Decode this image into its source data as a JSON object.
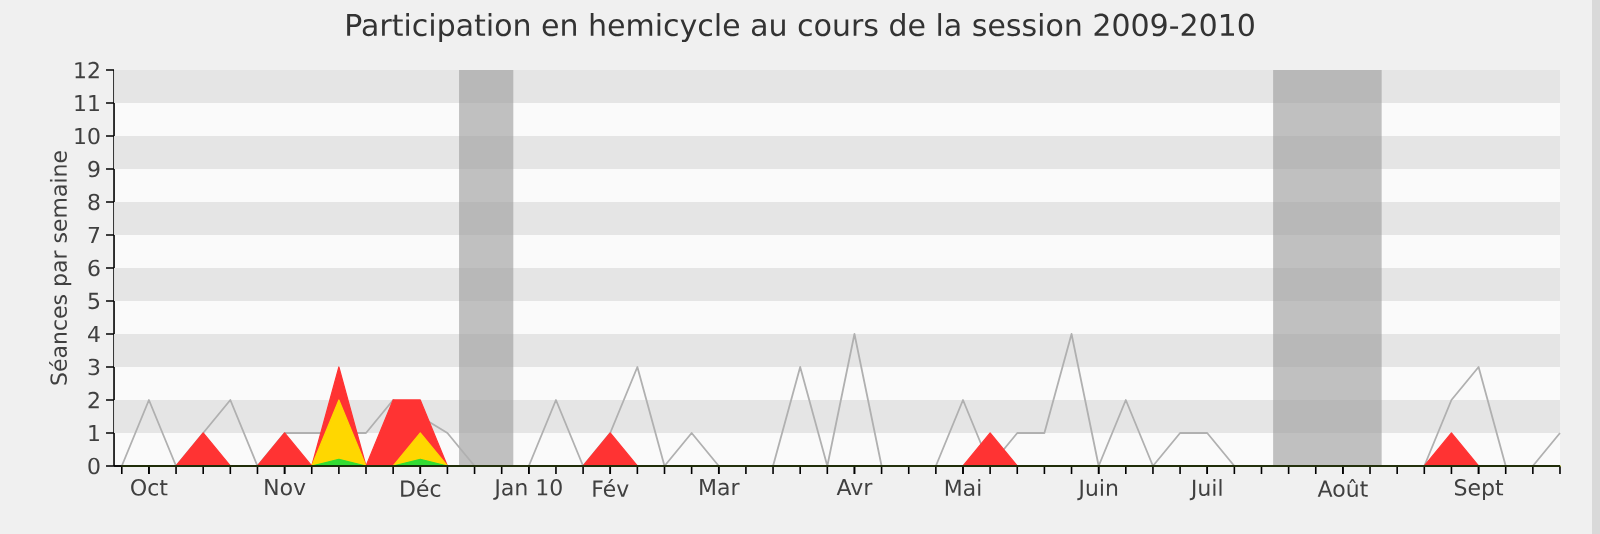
{
  "chart_data": {
    "type": "area",
    "title": "Participation en hemicycle au cours de la session 2009-2010",
    "ylabel": "Séances par semaine",
    "x": [
      "2009-09-28",
      "2009-10-05",
      "2009-10-12",
      "2009-10-19",
      "2009-10-26",
      "2009-11-02",
      "2009-11-09",
      "2009-11-16",
      "2009-11-23",
      "2009-11-30",
      "2009-12-07",
      "2009-12-14",
      "2009-12-21",
      "2009-12-28",
      "2010-01-04",
      "2010-01-11",
      "2010-01-18",
      "2010-01-25",
      "2010-02-01",
      "2010-02-08",
      "2010-02-15",
      "2010-02-22",
      "2010-03-01",
      "2010-03-08",
      "2010-03-15",
      "2010-03-22",
      "2010-03-29",
      "2010-04-05",
      "2010-04-12",
      "2010-04-19",
      "2010-04-26",
      "2010-05-03",
      "2010-05-10",
      "2010-05-17",
      "2010-05-24",
      "2010-05-31",
      "2010-06-07",
      "2010-06-14",
      "2010-06-21",
      "2010-06-28",
      "2010-07-05",
      "2010-07-12",
      "2010-07-19",
      "2010-07-26",
      "2010-08-02",
      "2010-08-09",
      "2010-08-16",
      "2010-08-23",
      "2010-08-30",
      "2010-09-06",
      "2010-09-13",
      "2010-09-20",
      "2010-09-27",
      "2010-10-04"
    ],
    "series": [
      {
        "type": "line",
        "color": "#b0b0b0",
        "values": [
          0,
          2,
          0,
          1,
          2,
          0,
          1,
          1,
          null,
          1,
          2,
          null,
          1,
          0,
          0,
          0,
          2,
          0,
          1,
          3,
          0,
          1,
          0,
          0,
          0,
          3,
          0,
          4,
          0,
          0,
          0,
          2,
          0,
          1,
          1,
          4,
          0,
          2,
          0,
          1,
          1,
          0,
          0,
          0,
          0,
          0,
          0,
          0,
          0,
          2,
          3,
          0,
          0,
          1
        ]
      },
      {
        "color": "#ff3333",
        "values": [
          0,
          0,
          0,
          1,
          0,
          0,
          1,
          0,
          3,
          0,
          2,
          2,
          0,
          0,
          0,
          0,
          0,
          0,
          1,
          0,
          0,
          0,
          0,
          0,
          0,
          0,
          0,
          0,
          0,
          0,
          0,
          0,
          1,
          0,
          0,
          0,
          0,
          0,
          0,
          0,
          0,
          0,
          0,
          0,
          0,
          0,
          0,
          0,
          0,
          1,
          0,
          0,
          0,
          0
        ]
      },
      {
        "color": "#ffd700",
        "values": [
          0,
          0,
          0,
          0,
          0,
          0,
          0,
          0,
          2,
          0,
          0,
          1,
          0,
          0,
          0,
          0,
          0,
          0,
          0,
          0,
          0,
          0,
          0,
          0,
          0,
          0,
          0,
          0,
          0,
          0,
          0,
          0,
          0,
          0,
          0,
          0,
          0,
          0,
          0,
          0,
          0,
          0,
          0,
          0,
          0,
          0,
          0,
          0,
          0,
          0,
          0,
          0,
          0,
          0
        ]
      },
      {
        "color": "#33dd33",
        "values": [
          0,
          0,
          0,
          0,
          0,
          0,
          0,
          0,
          0.2,
          0,
          0,
          0.2,
          0,
          0,
          0,
          0,
          0,
          0,
          0,
          0,
          0,
          0,
          0,
          0,
          0,
          0,
          0,
          0,
          0,
          0,
          0,
          0,
          0,
          0,
          0,
          0,
          0,
          0,
          0,
          0,
          0,
          0,
          0,
          0,
          0,
          0,
          0,
          0,
          0,
          0,
          0,
          0,
          0,
          0
        ]
      }
    ],
    "xlim": [
      "2009-09-26",
      "2010-10-04"
    ],
    "xticks": [
      {
        "value": "2009-10-05",
        "label": "Oct"
      },
      {
        "value": "2009-11-09",
        "label": "Nov"
      },
      {
        "value": "2009-12-14",
        "label": "Déc"
      },
      {
        "value": "2010-01-11",
        "label": "Jan 10"
      },
      {
        "value": "2010-02-01",
        "label": "Fév"
      },
      {
        "value": "2010-03-01",
        "label": "Mar"
      },
      {
        "value": "2010-04-05",
        "label": "Avr"
      },
      {
        "value": "2010-05-03",
        "label": "Mai"
      },
      {
        "value": "2010-06-07",
        "label": "Juin"
      },
      {
        "value": "2010-07-05",
        "label": "Juil"
      },
      {
        "value": "2010-08-09",
        "label": "Août"
      },
      {
        "value": "2010-09-13",
        "label": "Sept"
      }
    ],
    "ylim": [
      0,
      12
    ],
    "yticks": [
      0,
      1,
      2,
      3,
      4,
      5,
      6,
      7,
      8,
      9,
      10,
      11,
      12
    ],
    "bands": [
      {
        "axis": "x",
        "from": "2009-12-24",
        "to": "2010-01-07",
        "color": "#999999"
      },
      {
        "axis": "x",
        "from": "2010-07-22",
        "to": "2010-08-19",
        "color": "#999999"
      }
    ]
  }
}
